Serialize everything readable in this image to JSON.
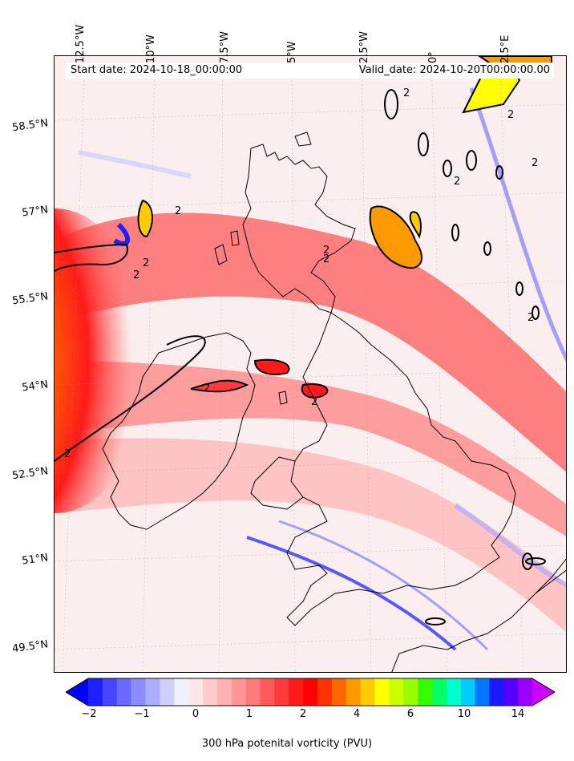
{
  "header": {
    "start_date": "Start date: 2024-10-18_00:00:00",
    "valid_date": "Valid_date: 2024-10-20T00:00:00.00"
  },
  "longitude_labels": [
    "12.5°W",
    "10°W",
    "7.5°W",
    "5°W",
    "2.5°W",
    "0°",
    "2.5°E"
  ],
  "latitude_labels": [
    "58.5°N",
    "57°N",
    "55.5°N",
    "54°N",
    "52.5°N",
    "51°N",
    "49.5°N"
  ],
  "contour_label": "2",
  "colorbar": {
    "label": "300 hPa potenital vorticity (PVU)",
    "tick_labels": [
      "−2",
      "−1",
      "0",
      "1",
      "2",
      "4",
      "6",
      "10",
      "14"
    ],
    "colors": [
      "#0000ff",
      "#2020ff",
      "#4646ff",
      "#6a6aff",
      "#8c8cff",
      "#adadff",
      "#cfcfff",
      "#f0f0ff",
      "#ffe6e6",
      "#ffcccc",
      "#ffb0b0",
      "#ff9595",
      "#ff7a7a",
      "#ff5a5a",
      "#ff3a3a",
      "#ff1a1a",
      "#ff0000",
      "#ff3300",
      "#ff6600",
      "#ff9900",
      "#ffcc00",
      "#ffff00",
      "#ccff00",
      "#99ff00",
      "#33ff00",
      "#00ff66",
      "#00ffcc",
      "#00ccff",
      "#0077ff",
      "#1a1aff",
      "#5500ff",
      "#9900ff",
      "#cc00ff"
    ]
  }
}
